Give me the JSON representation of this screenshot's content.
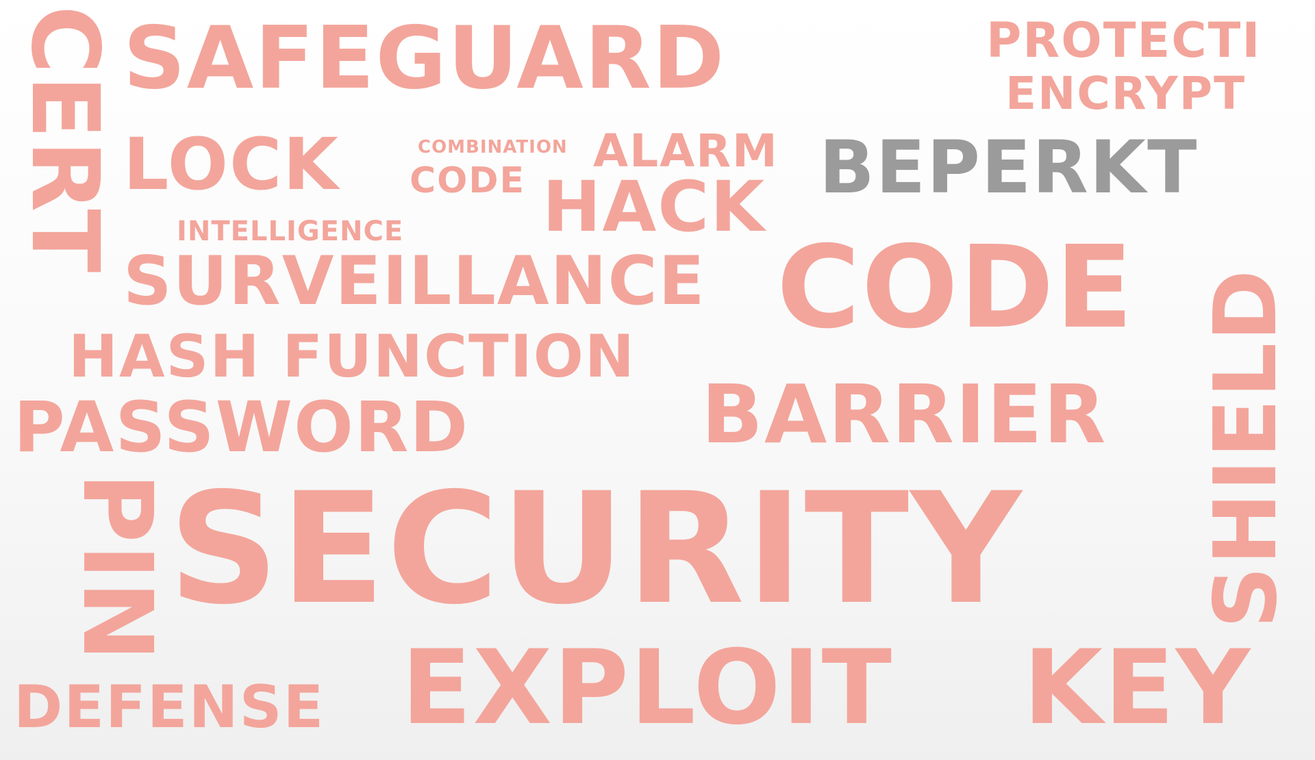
{
  "colors": {
    "accent": "#f3a59b",
    "muted": "#9b9b9b"
  },
  "words": {
    "safeguard": "SAFEGUARD",
    "protecti": "PROTECTI",
    "encrypt": "ENCRYPT",
    "cert": "CERT",
    "lock": "LOCK",
    "combination": "COMBINATION",
    "code_small": "CODE",
    "alarm": "ALARM",
    "hack": "HACK",
    "beperkt": "BEPERKT",
    "intelligence": "INTELLIGENCE",
    "surveillance": "SURVEILLANCE",
    "code_large": "CODE",
    "shield": "SHIELD",
    "hash_function": "HASH FUNCTION",
    "barrier": "BARRIER",
    "password": "PASSWORD",
    "pin": "PIN",
    "security": "SECURITY",
    "defense": "DEFENSE",
    "exploit": "EXPLOIT",
    "key": "KEY"
  }
}
